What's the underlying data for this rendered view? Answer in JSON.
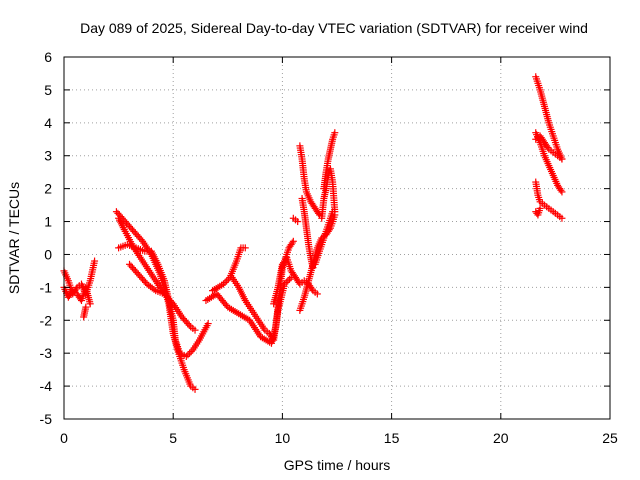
{
  "chart_data": {
    "type": "scatter",
    "title": "Day 089 of 2025, Sidereal Day-to-day VTEC variation (SDTVAR) for receiver wind",
    "xlabel": "GPS time / hours",
    "ylabel": "SDTVAR / TECUs",
    "xlim": [
      0,
      25
    ],
    "ylim": [
      -5,
      6
    ],
    "xticks": [
      "0",
      "5",
      "10",
      "15",
      "20",
      "25"
    ],
    "yticks": [
      "-5",
      "-4",
      "-3",
      "-2",
      "-1",
      "0",
      "1",
      "2",
      "3",
      "4",
      "5",
      "6"
    ],
    "grid": true,
    "marker": "+",
    "color": "#ff0000",
    "series": [
      {
        "name": "SDTVAR",
        "segments": [
          [
            [
              0.0,
              -0.5
            ],
            [
              0.2,
              -0.8
            ],
            [
              0.4,
              -1.2
            ],
            [
              0.6,
              -1.0
            ],
            [
              0.8,
              -0.9
            ],
            [
              1.0,
              -1.2
            ],
            [
              1.2,
              -0.8
            ],
            [
              1.4,
              -0.2
            ]
          ],
          [
            [
              0.0,
              -1.0
            ],
            [
              0.2,
              -1.3
            ],
            [
              0.4,
              -1.1
            ],
            [
              0.6,
              -1.2
            ],
            [
              0.8,
              -1.4
            ],
            [
              1.0,
              -1.0
            ],
            [
              1.2,
              -1.5
            ]
          ],
          [
            [
              0.9,
              -1.9
            ],
            [
              1.0,
              -1.6
            ]
          ],
          [
            [
              2.4,
              1.3
            ],
            [
              2.8,
              1.0
            ],
            [
              3.2,
              0.7
            ],
            [
              3.6,
              0.4
            ],
            [
              4.0,
              0.0
            ],
            [
              4.4,
              -0.6
            ],
            [
              4.8,
              -1.5
            ],
            [
              5.0,
              -2.4
            ],
            [
              5.2,
              -2.9
            ],
            [
              5.5,
              -3.5
            ],
            [
              5.8,
              -4.0
            ],
            [
              6.0,
              -4.1
            ]
          ],
          [
            [
              2.5,
              1.1
            ],
            [
              2.8,
              0.7
            ],
            [
              3.2,
              0.2
            ],
            [
              3.6,
              -0.2
            ],
            [
              4.0,
              -0.6
            ],
            [
              4.4,
              -1.0
            ],
            [
              4.6,
              -1.2
            ]
          ],
          [
            [
              2.5,
              0.2
            ],
            [
              2.9,
              0.3
            ],
            [
              3.3,
              0.2
            ],
            [
              3.7,
              0.1
            ],
            [
              4.0,
              0.1
            ],
            [
              4.3,
              -0.3
            ],
            [
              4.6,
              -0.8
            ],
            [
              4.8,
              -1.4
            ],
            [
              5.0,
              -2.0
            ],
            [
              5.1,
              -2.6
            ],
            [
              5.3,
              -3.0
            ],
            [
              5.6,
              -3.1
            ],
            [
              5.9,
              -2.9
            ],
            [
              6.2,
              -2.6
            ],
            [
              6.6,
              -2.1
            ]
          ],
          [
            [
              3.0,
              -0.3
            ],
            [
              3.4,
              -0.6
            ],
            [
              3.8,
              -0.9
            ],
            [
              4.2,
              -1.1
            ],
            [
              4.6,
              -1.2
            ],
            [
              5.0,
              -1.5
            ],
            [
              5.4,
              -1.9
            ],
            [
              5.8,
              -2.2
            ],
            [
              6.0,
              -2.3
            ]
          ],
          [
            [
              6.5,
              -1.4
            ],
            [
              7.0,
              -1.2
            ],
            [
              7.5,
              -1.6
            ],
            [
              8.0,
              -1.8
            ],
            [
              8.5,
              -2.0
            ],
            [
              9.0,
              -2.5
            ],
            [
              9.5,
              -2.7
            ],
            [
              9.7,
              -2.2
            ],
            [
              10.0,
              -0.4
            ],
            [
              10.3,
              0.2
            ],
            [
              10.5,
              0.4
            ]
          ],
          [
            [
              6.8,
              -1.1
            ],
            [
              7.3,
              -0.9
            ],
            [
              7.6,
              -0.7
            ],
            [
              7.9,
              -0.2
            ],
            [
              8.1,
              0.2
            ],
            [
              8.3,
              0.2
            ]
          ],
          [
            [
              7.7,
              -0.7
            ],
            [
              8.0,
              -1.0
            ],
            [
              8.3,
              -1.4
            ],
            [
              8.6,
              -1.7
            ],
            [
              8.9,
              -2.0
            ],
            [
              9.2,
              -2.3
            ],
            [
              9.4,
              -2.4
            ],
            [
              9.6,
              -2.6
            ],
            [
              9.8,
              -1.7
            ],
            [
              10.1,
              -0.9
            ],
            [
              10.4,
              -0.7
            ]
          ],
          [
            [
              9.6,
              -1.5
            ],
            [
              9.8,
              -1.0
            ],
            [
              10.0,
              -0.3
            ],
            [
              10.2,
              -0.1
            ],
            [
              10.4,
              -0.5
            ],
            [
              10.6,
              -0.7
            ],
            [
              10.8,
              -0.9
            ],
            [
              11.0,
              -0.8
            ],
            [
              11.2,
              -0.9
            ],
            [
              11.4,
              -1.1
            ],
            [
              11.6,
              -1.2
            ]
          ],
          [
            [
              10.5,
              1.1
            ],
            [
              10.7,
              1.0
            ]
          ],
          [
            [
              10.8,
              3.3
            ],
            [
              10.9,
              2.9
            ],
            [
              11.0,
              2.3
            ],
            [
              11.1,
              1.9
            ],
            [
              11.3,
              1.6
            ],
            [
              11.5,
              1.4
            ],
            [
              11.7,
              1.2
            ]
          ],
          [
            [
              10.9,
              1.7
            ],
            [
              11.0,
              1.3
            ],
            [
              11.1,
              0.8
            ],
            [
              11.2,
              0.3
            ],
            [
              11.3,
              -0.1
            ],
            [
              11.4,
              -0.4
            ]
          ],
          [
            [
              10.8,
              -1.7
            ],
            [
              11.0,
              -1.3
            ],
            [
              11.2,
              -0.8
            ],
            [
              11.4,
              -0.3
            ],
            [
              11.6,
              0.2
            ],
            [
              11.8,
              0.5
            ],
            [
              12.0,
              0.6
            ],
            [
              12.2,
              0.8
            ],
            [
              12.4,
              1.2
            ]
          ],
          [
            [
              11.5,
              -0.3
            ],
            [
              11.7,
              0.1
            ],
            [
              11.9,
              0.5
            ],
            [
              12.1,
              0.9
            ],
            [
              12.3,
              1.3
            ]
          ],
          [
            [
              11.8,
              1.1
            ],
            [
              11.9,
              1.7
            ],
            [
              12.0,
              2.0
            ],
            [
              12.1,
              2.4
            ],
            [
              12.2,
              2.6
            ],
            [
              12.3,
              2.2
            ],
            [
              12.4,
              1.3
            ]
          ],
          [
            [
              11.9,
              2.0
            ],
            [
              12.0,
              2.5
            ],
            [
              12.1,
              2.9
            ],
            [
              12.2,
              3.2
            ],
            [
              12.3,
              3.5
            ],
            [
              12.4,
              3.7
            ]
          ],
          [
            [
              21.6,
              5.4
            ],
            [
              21.8,
              5.0
            ],
            [
              22.0,
              4.5
            ],
            [
              22.2,
              4.0
            ],
            [
              22.4,
              3.6
            ],
            [
              22.6,
              3.2
            ],
            [
              22.8,
              2.9
            ]
          ],
          [
            [
              21.6,
              3.7
            ],
            [
              21.8,
              3.4
            ],
            [
              22.0,
              3.0
            ],
            [
              22.2,
              2.7
            ],
            [
              22.4,
              2.4
            ],
            [
              22.6,
              2.1
            ],
            [
              22.8,
              1.9
            ]
          ],
          [
            [
              21.6,
              3.5
            ],
            [
              21.8,
              3.6
            ],
            [
              22.0,
              3.4
            ],
            [
              22.2,
              3.2
            ],
            [
              22.4,
              3.1
            ],
            [
              22.6,
              3.0
            ],
            [
              22.8,
              2.9
            ]
          ],
          [
            [
              21.6,
              2.2
            ],
            [
              21.7,
              1.8
            ],
            [
              21.8,
              1.6
            ],
            [
              22.0,
              1.5
            ],
            [
              22.2,
              1.4
            ],
            [
              22.4,
              1.3
            ],
            [
              22.6,
              1.2
            ],
            [
              22.8,
              1.1
            ]
          ],
          [
            [
              21.6,
              1.3
            ],
            [
              21.7,
              1.2
            ],
            [
              21.8,
              1.4
            ]
          ]
        ]
      }
    ]
  }
}
